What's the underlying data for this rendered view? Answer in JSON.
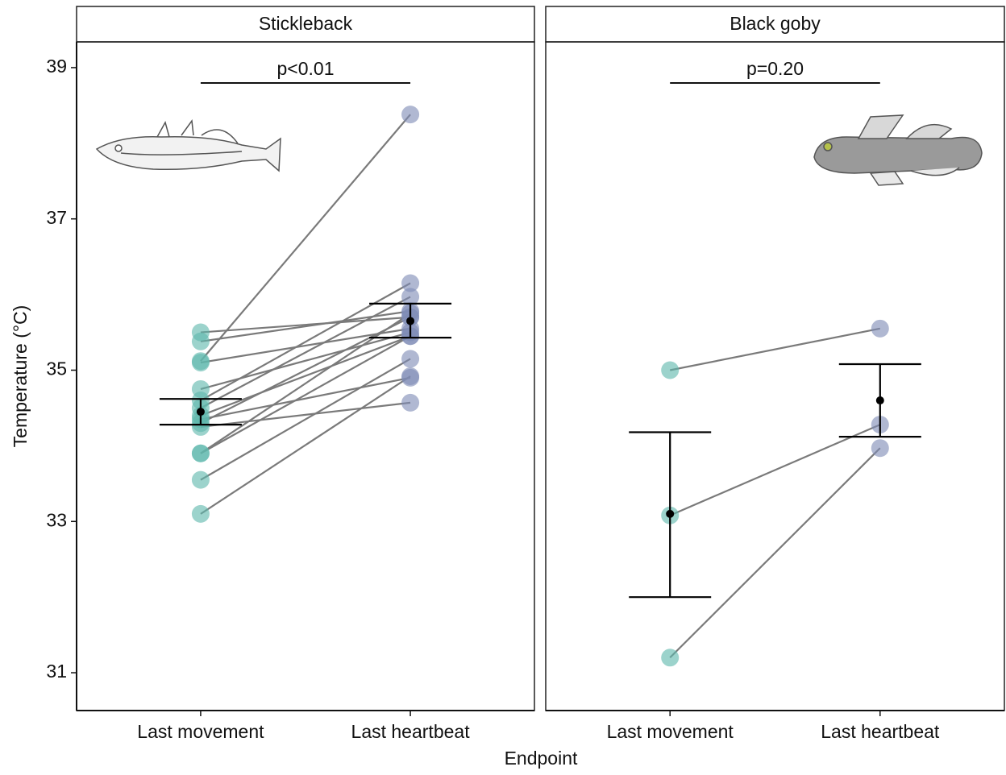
{
  "chart_data": [
    {
      "type": "paired",
      "title": "Stickleback",
      "annotation": "p<0.01",
      "categories": [
        "Last movement",
        "Last heartbeat"
      ],
      "colors": [
        "#5fb8ad",
        "#7f8cb6"
      ],
      "start": [
        35.5,
        35.38,
        35.12,
        35.1,
        34.75,
        34.6,
        34.5,
        34.4,
        34.35,
        34.3,
        34.25,
        33.9,
        33.9,
        33.55,
        33.1
      ],
      "end": [
        35.7,
        35.78,
        38.38,
        35.55,
        35.5,
        36.15,
        35.97,
        35.45,
        34.9,
        35.7,
        34.57,
        35.45,
        35.75,
        35.15,
        34.92
      ],
      "mean": [
        34.45,
        35.65
      ],
      "error_low": [
        34.28,
        35.43
      ],
      "error_high": [
        34.62,
        35.88
      ],
      "ylim": [
        30.5,
        39.34
      ],
      "yticks": [
        31,
        33,
        35,
        37,
        39
      ],
      "ylabel": "Temperature (°C)",
      "xlabel": "Endpoint"
    },
    {
      "type": "paired",
      "title": "Black goby",
      "annotation": "p=0.20",
      "categories": [
        "Last movement",
        "Last heartbeat"
      ],
      "colors": [
        "#5fb8ad",
        "#7f8cb6"
      ],
      "start": [
        35.0,
        33.08,
        31.2
      ],
      "end": [
        35.55,
        34.28,
        33.97
      ],
      "mean": [
        33.1,
        34.6
      ],
      "error_low": [
        32.0,
        34.12
      ],
      "error_high": [
        34.18,
        35.08
      ],
      "ylim": [
        30.5,
        39.34
      ]
    }
  ]
}
